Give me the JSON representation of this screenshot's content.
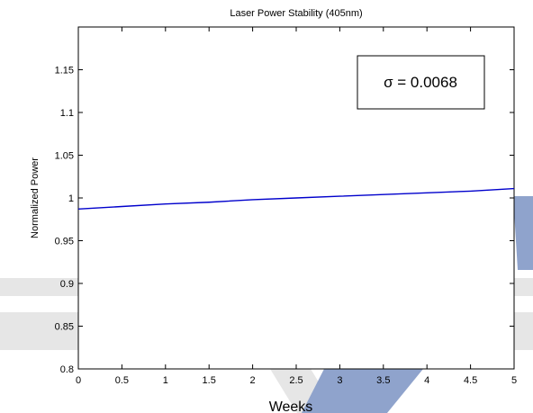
{
  "chart_data": {
    "type": "line",
    "title": "Laser Power Stability (405nm)",
    "xlabel": "Weeks",
    "ylabel": "Normalized Power",
    "xlim": [
      0,
      5
    ],
    "ylim": [
      0.8,
      1.2
    ],
    "xticks": [
      "0",
      "0.5",
      "1",
      "1.5",
      "2",
      "2.5",
      "3",
      "3.5",
      "4",
      "4.5",
      "5"
    ],
    "yticks": [
      "0.8",
      "0.85",
      "0.9",
      "0.95",
      "1",
      "1.05",
      "1.1",
      "1.15"
    ],
    "grid": false,
    "series": [
      {
        "color": "#0000cc",
        "x": [
          0,
          0.5,
          1,
          1.5,
          2,
          2.5,
          3,
          3.5,
          4,
          4.5,
          5
        ],
        "y": [
          0.987,
          0.99,
          0.993,
          0.995,
          0.998,
          1.0,
          1.002,
          1.004,
          1.006,
          1.008,
          1.011
        ]
      }
    ],
    "annotation": "σ = 0.0068"
  },
  "colors": {
    "line": "#0000cc",
    "decor_blue": "#8fa3cc",
    "decor_gray": "#e6e6e6"
  }
}
